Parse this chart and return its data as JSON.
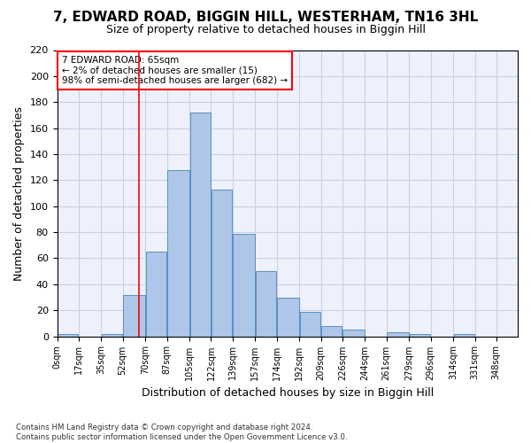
{
  "title": "7, EDWARD ROAD, BIGGIN HILL, WESTERHAM, TN16 3HL",
  "subtitle": "Size of property relative to detached houses in Biggin Hill",
  "xlabel": "Distribution of detached houses by size in Biggin Hill",
  "ylabel": "Number of detached properties",
  "bar_color": "#aec6e8",
  "bar_edge_color": "#5a8fc0",
  "bin_edges": [
    0,
    17,
    35,
    52,
    70,
    87,
    105,
    122,
    139,
    157,
    174,
    192,
    209,
    226,
    244,
    261,
    279,
    296,
    314,
    331,
    348,
    365
  ],
  "bin_labels": [
    "0sqm",
    "17sqm",
    "35sqm",
    "52sqm",
    "70sqm",
    "87sqm",
    "105sqm",
    "122sqm",
    "139sqm",
    "157sqm",
    "174sqm",
    "192sqm",
    "209sqm",
    "226sqm",
    "244sqm",
    "261sqm",
    "279sqm",
    "296sqm",
    "314sqm",
    "331sqm",
    "348sqm"
  ],
  "bar_heights": [
    2,
    0,
    2,
    32,
    65,
    128,
    172,
    113,
    79,
    50,
    30,
    19,
    8,
    5,
    0,
    3,
    2,
    0,
    2,
    0,
    0
  ],
  "property_size": 65,
  "vline_x": 65,
  "annotation_text": "7 EDWARD ROAD: 65sqm\n← 2% of detached houses are smaller (15)\n98% of semi-detached houses are larger (682) →",
  "annotation_box_color": "white",
  "annotation_box_edge": "red",
  "ylim": [
    0,
    220
  ],
  "yticks": [
    0,
    20,
    40,
    60,
    80,
    100,
    120,
    140,
    160,
    180,
    200,
    220
  ],
  "background_color": "#eef1fb",
  "grid_color": "#c8d0e8",
  "footnote": "Contains HM Land Registry data © Crown copyright and database right 2024.\nContains public sector information licensed under the Open Government Licence v3.0."
}
